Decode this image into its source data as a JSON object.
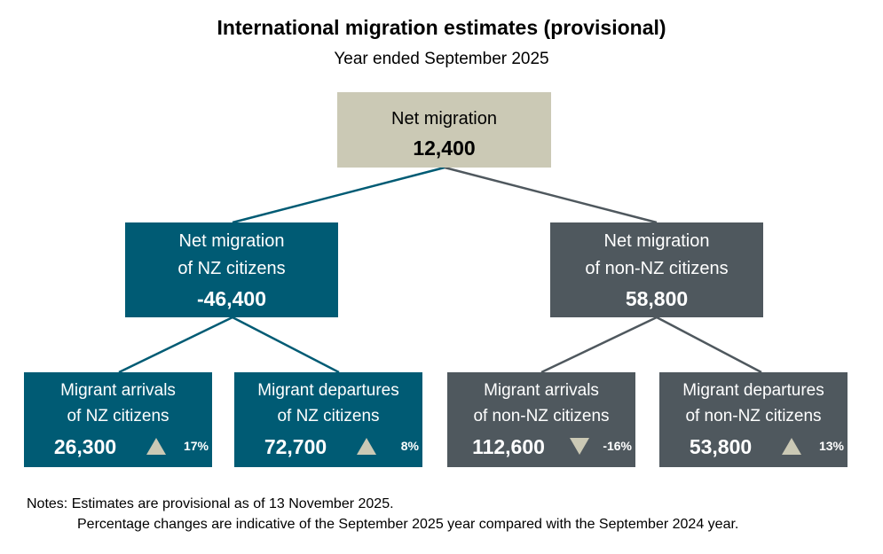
{
  "title": "International migration estimates (provisional)",
  "subtitle": "Year ended September 2025",
  "colors": {
    "top_box": "#cbc9b5",
    "nz_branch": "#005b74",
    "non_nz_branch": "#4f585e",
    "arrow": "#cbc9b5"
  },
  "top": {
    "label": "Net migration",
    "value": "12,400"
  },
  "mid": [
    {
      "label_line1": "Net migration",
      "label_line2": "of NZ citizens",
      "value": "-46,400"
    },
    {
      "label_line1": "Net migration",
      "label_line2": "of non-NZ citizens",
      "value": "58,800"
    }
  ],
  "leaves": [
    {
      "label_line1": "Migrant arrivals",
      "label_line2": "of NZ citizens",
      "value": "26,300",
      "direction": "up",
      "change": "17%"
    },
    {
      "label_line1": "Migrant departures",
      "label_line2": "of NZ citizens",
      "value": "72,700",
      "direction": "up",
      "change": "8%"
    },
    {
      "label_line1": "Migrant arrivals",
      "label_line2": "of non-NZ citizens",
      "value": "112,600",
      "direction": "down",
      "change": "-16%"
    },
    {
      "label_line1": "Migrant departures",
      "label_line2": "of non-NZ citizens",
      "value": "53,800",
      "direction": "up",
      "change": "13%"
    }
  ],
  "notes": {
    "line1": "Notes: Estimates are provisional as of 13 November 2025.",
    "line2": "Percentage changes are indicative of the September 2025 year compared with the September 2024 year."
  }
}
